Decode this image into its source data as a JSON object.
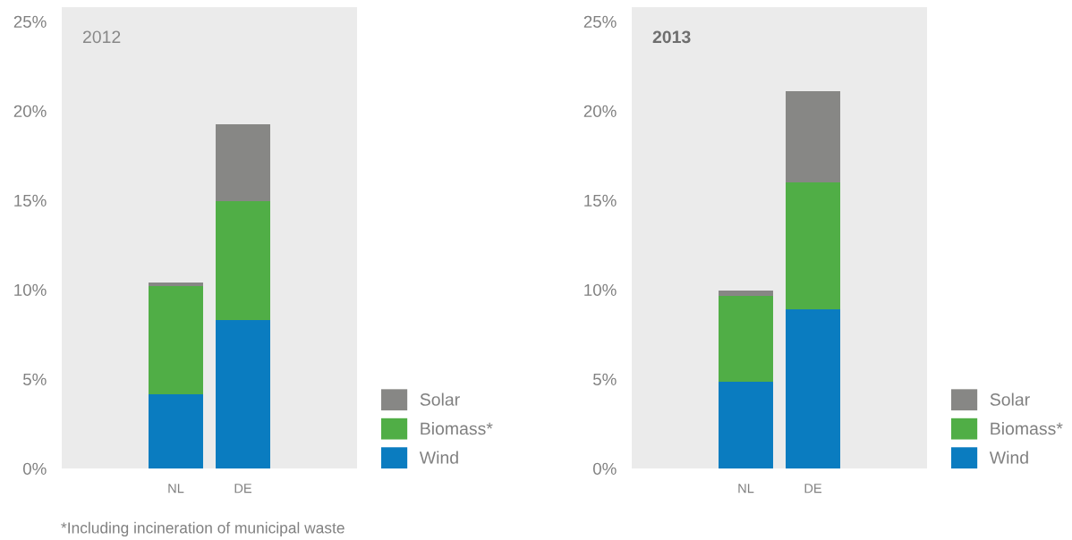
{
  "chart_data": [
    {
      "type": "bar",
      "title": "2012",
      "stacked": true,
      "categories": [
        "NL",
        "DE"
      ],
      "series": [
        {
          "name": "Wind",
          "color": "#0a7cc0",
          "values": [
            4.15,
            8.3
          ]
        },
        {
          "name": "Biomass*",
          "color": "#50ae46",
          "values": [
            6.05,
            6.65
          ]
        },
        {
          "name": "Solar",
          "color": "#878785",
          "values": [
            0.2,
            4.3
          ]
        }
      ],
      "ylim": [
        0,
        25.8
      ],
      "yticks": [
        {
          "value": 0,
          "label": "0%"
        },
        {
          "value": 5,
          "label": "5%"
        },
        {
          "value": 10,
          "label": "10%"
        },
        {
          "value": 15,
          "label": "15%"
        },
        {
          "value": 20,
          "label": "20%"
        },
        {
          "value": 25,
          "label": "25%"
        }
      ],
      "legend": "bottom right",
      "annotations": [
        "*Including incineration of municipal waste"
      ]
    },
    {
      "type": "bar",
      "title": "2013",
      "stacked": true,
      "categories": [
        "NL",
        "DE"
      ],
      "series": [
        {
          "name": "Wind",
          "color": "#0a7cc0",
          "values": [
            4.85,
            8.9
          ]
        },
        {
          "name": "Biomass*",
          "color": "#50ae46",
          "values": [
            4.8,
            7.1
          ]
        },
        {
          "name": "Solar",
          "color": "#878785",
          "values": [
            0.3,
            5.1
          ]
        }
      ],
      "ylim": [
        0,
        25.8
      ],
      "yticks": [
        {
          "value": 0,
          "label": "0%"
        },
        {
          "value": 5,
          "label": "5%"
        },
        {
          "value": 10,
          "label": "10%"
        },
        {
          "value": 15,
          "label": "15%"
        },
        {
          "value": 20,
          "label": "20%"
        },
        {
          "value": 25,
          "label": "25%"
        }
      ],
      "legend": "bottom right"
    }
  ]
}
